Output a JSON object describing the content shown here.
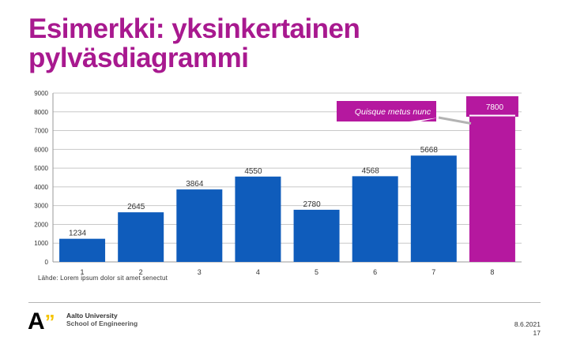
{
  "slide": {
    "title_line1": "Esimerkki: yksinkertainen",
    "title_line2": "pylväsdiagrammi",
    "source": "Lähde: Lorem ipsum dolor sit amet senectut",
    "logo": {
      "mark": "A",
      "mark_quote": "”",
      "line1": "Aalto University",
      "line2": "School of Engineering"
    },
    "date": "8.6.2021",
    "page_number": "17"
  },
  "colors": {
    "title": "#a8198f",
    "bar": "#0f5cbb",
    "highlight_bar": "#b5189f",
    "callout_fill": "#b5189f",
    "callout_text": "#ffffff",
    "connector": "#b3b3b3"
  },
  "chart_data": {
    "type": "bar",
    "categories": [
      "1",
      "2",
      "3",
      "4",
      "5",
      "6",
      "7",
      "8"
    ],
    "values": [
      1234,
      2645,
      3864,
      4550,
      2780,
      4568,
      5668,
      7800
    ],
    "data_labels": [
      "1234",
      "2645",
      "3864",
      "4550",
      "2780",
      "4568",
      "5668",
      "7800"
    ],
    "highlight_index": 7,
    "ylim": [
      0,
      9000
    ],
    "yticks": [
      0,
      1000,
      2000,
      3000,
      4000,
      5000,
      6000,
      7000,
      8000,
      9000
    ],
    "grid": true,
    "title": "",
    "xlabel": "",
    "ylabel": "",
    "annotation": {
      "text": "Quisque metus nunc",
      "target_index": 7
    }
  }
}
